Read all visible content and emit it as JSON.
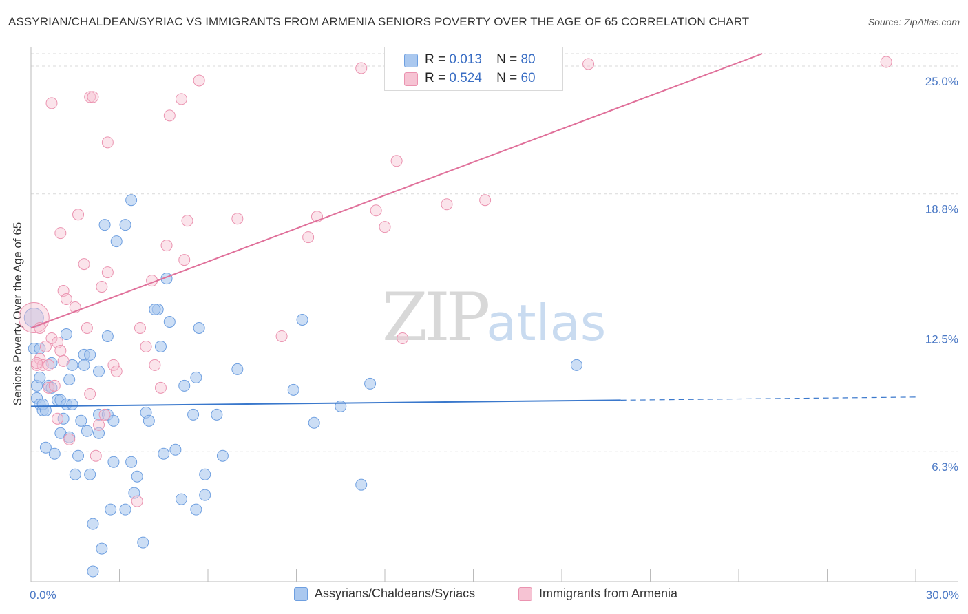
{
  "header": {
    "title": "ASSYRIAN/CHALDEAN/SYRIAC VS IMMIGRANTS FROM ARMENIA SENIORS POVERTY OVER THE AGE OF 65 CORRELATION CHART",
    "source": "Source: ZipAtlas.com"
  },
  "watermark": {
    "zip": "ZIP",
    "atlas": "atlas"
  },
  "legend": {
    "series1": {
      "r_label": "R =",
      "r_value": "0.013",
      "n_label": "N =",
      "n_value": "80"
    },
    "series2": {
      "r_label": "R =",
      "r_value": "0.524",
      "n_label": "N =",
      "n_value": "60"
    }
  },
  "bottom_legend": {
    "series1": "Assyrians/Chaldeans/Syriacs",
    "series2": "Immigrants from Armenia"
  },
  "colors": {
    "blue_fill": "#aac8ef",
    "blue_stroke": "#6e9fe0",
    "blue_line": "#3a78cc",
    "pink_fill": "#f6c3d3",
    "pink_stroke": "#eb93b0",
    "pink_line": "#e0709a",
    "grid": "#d9d9d9",
    "tick_text": "#4a78c5"
  },
  "chart_data": {
    "type": "scatter",
    "title": "ASSYRIAN/CHALDEAN/SYRIAC VS IMMIGRANTS FROM ARMENIA SENIORS POVERTY OVER THE AGE OF 65 CORRELATION CHART",
    "xlabel": "",
    "ylabel": "Seniors Poverty Over the Age of 65",
    "xlim": [
      0,
      30
    ],
    "ylim": [
      0,
      25.6
    ],
    "x_tick_labels": [
      "0.0%",
      "30.0%"
    ],
    "y_ticks": [
      {
        "value": 6.3,
        "label": "6.3%"
      },
      {
        "value": 12.5,
        "label": "12.5%"
      },
      {
        "value": 18.8,
        "label": "18.8%"
      },
      {
        "value": 25.0,
        "label": "25.0%"
      }
    ],
    "series": [
      {
        "name": "Assyrians/Chaldeans/Syriacs",
        "color": "blue",
        "R": 0.013,
        "N": 80,
        "trend": {
          "x0": 0.0,
          "y0": 8.5,
          "x1": 20.0,
          "y1": 8.8,
          "dash_x1": 30.0,
          "dash_y1": 8.95
        },
        "points": [
          [
            0.1,
            12.8
          ],
          [
            0.1,
            11.3
          ],
          [
            0.2,
            9.5
          ],
          [
            0.2,
            8.9
          ],
          [
            0.3,
            8.6
          ],
          [
            0.3,
            9.9
          ],
          [
            0.4,
            8.3
          ],
          [
            0.4,
            8.6
          ],
          [
            0.5,
            8.3
          ],
          [
            0.5,
            6.5
          ],
          [
            0.6,
            9.5
          ],
          [
            0.7,
            9.4
          ],
          [
            0.7,
            10.6
          ],
          [
            0.8,
            6.2
          ],
          [
            0.9,
            8.8
          ],
          [
            1.0,
            8.8
          ],
          [
            1.0,
            7.2
          ],
          [
            1.1,
            7.9
          ],
          [
            1.2,
            12.0
          ],
          [
            1.2,
            8.6
          ],
          [
            1.3,
            9.8
          ],
          [
            1.3,
            7.0
          ],
          [
            1.4,
            8.6
          ],
          [
            1.4,
            10.5
          ],
          [
            1.5,
            5.2
          ],
          [
            1.6,
            6.1
          ],
          [
            1.7,
            7.8
          ],
          [
            1.8,
            11.0
          ],
          [
            1.8,
            10.5
          ],
          [
            1.9,
            7.3
          ],
          [
            2.0,
            11.0
          ],
          [
            2.0,
            5.2
          ],
          [
            2.1,
            0.5
          ],
          [
            2.1,
            2.8
          ],
          [
            2.3,
            7.2
          ],
          [
            2.3,
            8.1
          ],
          [
            2.3,
            10.2
          ],
          [
            2.4,
            1.6
          ],
          [
            2.5,
            17.3
          ],
          [
            2.6,
            11.9
          ],
          [
            2.6,
            8.1
          ],
          [
            2.7,
            3.5
          ],
          [
            2.8,
            7.8
          ],
          [
            2.8,
            5.8
          ],
          [
            2.9,
            16.5
          ],
          [
            3.2,
            3.5
          ],
          [
            3.2,
            17.3
          ],
          [
            3.4,
            18.5
          ],
          [
            3.4,
            5.8
          ],
          [
            3.5,
            4.3
          ],
          [
            3.6,
            5.1
          ],
          [
            3.8,
            1.9
          ],
          [
            3.9,
            8.2
          ],
          [
            4.0,
            7.8
          ],
          [
            4.3,
            13.2
          ],
          [
            4.4,
            11.4
          ],
          [
            4.5,
            6.2
          ],
          [
            4.6,
            14.7
          ],
          [
            4.7,
            12.6
          ],
          [
            4.9,
            6.4
          ],
          [
            5.1,
            4.0
          ],
          [
            5.2,
            9.5
          ],
          [
            5.5,
            8.1
          ],
          [
            5.6,
            9.9
          ],
          [
            5.6,
            3.5
          ],
          [
            5.7,
            12.3
          ],
          [
            5.9,
            5.2
          ],
          [
            5.9,
            4.2
          ],
          [
            6.3,
            8.1
          ],
          [
            6.5,
            6.1
          ],
          [
            7.0,
            10.3
          ],
          [
            8.9,
            9.3
          ],
          [
            9.2,
            12.7
          ],
          [
            9.6,
            7.7
          ],
          [
            10.5,
            8.5
          ],
          [
            11.2,
            4.7
          ],
          [
            11.5,
            9.6
          ],
          [
            18.5,
            10.5
          ],
          [
            0.3,
            11.3
          ],
          [
            4.2,
            13.2
          ]
        ]
      },
      {
        "name": "Immigrants from Armenia",
        "color": "pink",
        "R": 0.524,
        "N": 60,
        "trend": {
          "x0": 0.0,
          "y0": 12.3,
          "x1": 24.8,
          "y1": 25.6
        },
        "points": [
          [
            0.1,
            12.8
          ],
          [
            0.2,
            10.5
          ],
          [
            0.3,
            12.3
          ],
          [
            0.3,
            10.8
          ],
          [
            0.4,
            10.5
          ],
          [
            0.5,
            11.4
          ],
          [
            0.6,
            10.5
          ],
          [
            0.6,
            9.4
          ],
          [
            0.7,
            11.8
          ],
          [
            0.7,
            23.2
          ],
          [
            0.8,
            9.5
          ],
          [
            0.9,
            11.6
          ],
          [
            0.9,
            7.9
          ],
          [
            1.0,
            16.9
          ],
          [
            1.0,
            11.2
          ],
          [
            1.1,
            14.1
          ],
          [
            1.2,
            13.7
          ],
          [
            1.3,
            6.9
          ],
          [
            1.5,
            13.3
          ],
          [
            1.6,
            17.8
          ],
          [
            1.8,
            15.4
          ],
          [
            1.9,
            12.3
          ],
          [
            2.0,
            9.1
          ],
          [
            2.0,
            23.5
          ],
          [
            2.1,
            23.5
          ],
          [
            2.2,
            6.1
          ],
          [
            2.3,
            7.6
          ],
          [
            2.4,
            14.3
          ],
          [
            2.5,
            8.1
          ],
          [
            2.6,
            15.0
          ],
          [
            2.6,
            21.3
          ],
          [
            2.8,
            10.5
          ],
          [
            2.9,
            10.2
          ],
          [
            3.6,
            3.9
          ],
          [
            3.9,
            11.4
          ],
          [
            4.1,
            14.6
          ],
          [
            4.2,
            10.5
          ],
          [
            4.4,
            9.4
          ],
          [
            4.6,
            16.3
          ],
          [
            4.7,
            22.6
          ],
          [
            5.1,
            23.4
          ],
          [
            5.2,
            15.6
          ],
          [
            5.3,
            17.5
          ],
          [
            5.7,
            24.3
          ],
          [
            7.0,
            17.6
          ],
          [
            8.5,
            11.9
          ],
          [
            9.4,
            16.7
          ],
          [
            9.7,
            17.7
          ],
          [
            11.2,
            24.9
          ],
          [
            11.7,
            18.0
          ],
          [
            12.0,
            17.2
          ],
          [
            12.4,
            20.4
          ],
          [
            12.6,
            11.8
          ],
          [
            14.1,
            18.3
          ],
          [
            15.4,
            18.5
          ],
          [
            18.9,
            25.1
          ],
          [
            29.0,
            25.2
          ],
          [
            3.7,
            12.3
          ],
          [
            0.2,
            10.6
          ],
          [
            1.1,
            10.7
          ]
        ]
      }
    ]
  }
}
